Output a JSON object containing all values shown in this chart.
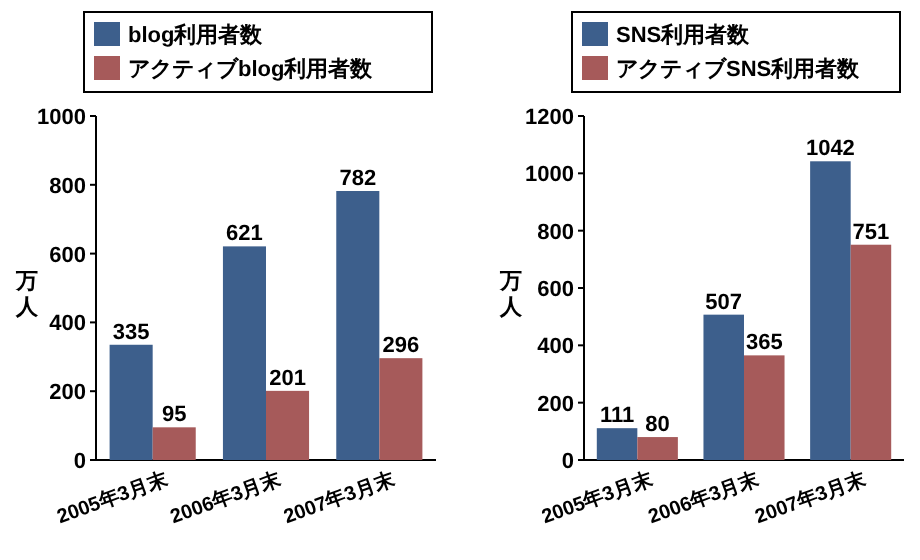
{
  "chart_data": [
    {
      "type": "bar",
      "ylabel": "万人",
      "categories": [
        "2005年3月末",
        "2006年3月末",
        "2007年3月末"
      ],
      "series": [
        {
          "name": "blog利用者数",
          "color": "#3d5f8c",
          "values": [
            335,
            621,
            782
          ]
        },
        {
          "name": "アクティブblog利用者数",
          "color": "#a65a5a",
          "values": [
            95,
            201,
            296
          ]
        }
      ],
      "ylim": [
        0,
        1000
      ],
      "yticks": [
        0,
        200,
        400,
        600,
        800,
        1000
      ],
      "data_labels": true,
      "legend": "top left",
      "grid": false
    },
    {
      "type": "bar",
      "ylabel": "万人",
      "categories": [
        "2005年3月末",
        "2006年3月末",
        "2007年3月末"
      ],
      "series": [
        {
          "name": "SNS利用者数",
          "color": "#3d5f8c",
          "values": [
            111,
            507,
            1042
          ]
        },
        {
          "name": "アクティブSNS利用者数",
          "color": "#a65a5a",
          "values": [
            80,
            365,
            751
          ]
        }
      ],
      "ylim": [
        0,
        1200
      ],
      "yticks": [
        0,
        200,
        400,
        600,
        800,
        1000,
        1200
      ],
      "data_labels": true,
      "legend": "top left",
      "grid": false
    }
  ]
}
